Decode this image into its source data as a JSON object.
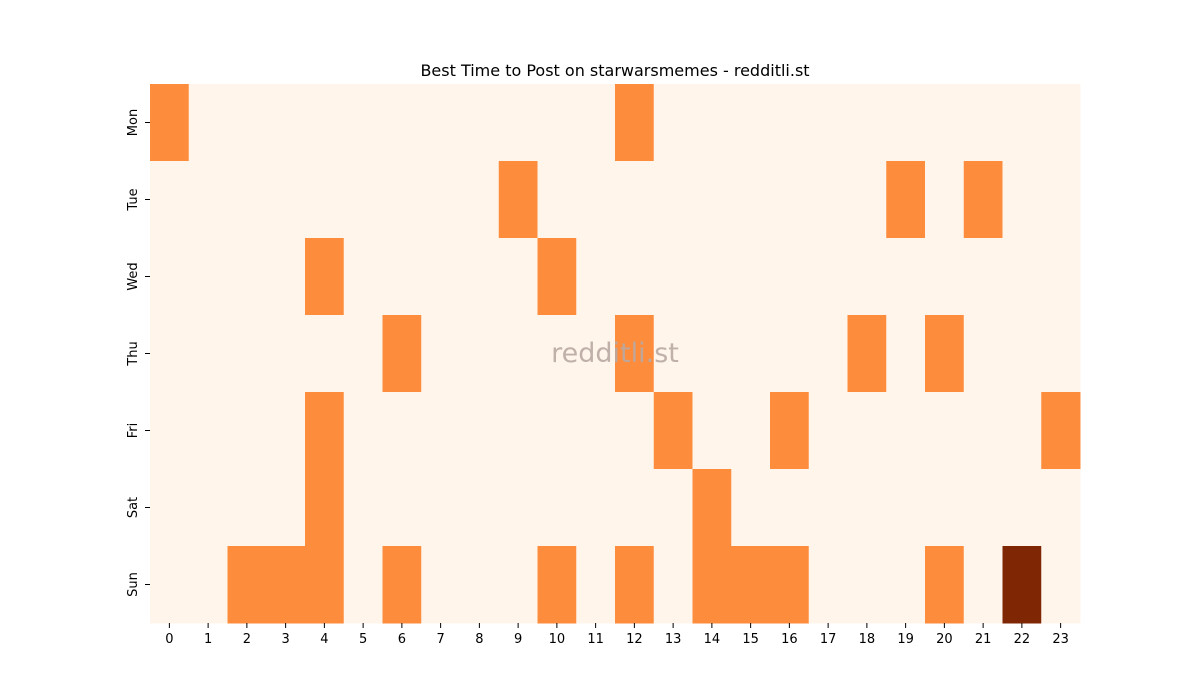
{
  "chart_data": {
    "type": "heatmap",
    "title": "Best Time to Post on starwarsmemes - redditli.st",
    "watermark": "redditli.st",
    "x_categories": [
      "0",
      "1",
      "2",
      "3",
      "4",
      "5",
      "6",
      "7",
      "8",
      "9",
      "10",
      "11",
      "12",
      "13",
      "14",
      "15",
      "16",
      "17",
      "18",
      "19",
      "20",
      "21",
      "22",
      "23"
    ],
    "y_categories": [
      "Mon",
      "Tue",
      "Wed",
      "Thu",
      "Fri",
      "Sat",
      "Sun"
    ],
    "values": [
      [
        1,
        0,
        0,
        0,
        0,
        0,
        0,
        0,
        0,
        0,
        0,
        0,
        1,
        0,
        0,
        0,
        0,
        0,
        0,
        0,
        0,
        0,
        0,
        0
      ],
      [
        0,
        0,
        0,
        0,
        0,
        0,
        0,
        0,
        0,
        1,
        0,
        0,
        0,
        0,
        0,
        0,
        0,
        0,
        0,
        1,
        0,
        1,
        0,
        0
      ],
      [
        0,
        0,
        0,
        0,
        1,
        0,
        0,
        0,
        0,
        0,
        1,
        0,
        0,
        0,
        0,
        0,
        0,
        0,
        0,
        0,
        0,
        0,
        0,
        0
      ],
      [
        0,
        0,
        0,
        0,
        0,
        0,
        1,
        0,
        0,
        0,
        0,
        0,
        1,
        0,
        0,
        0,
        0,
        0,
        1,
        0,
        1,
        0,
        0,
        0
      ],
      [
        0,
        0,
        0,
        0,
        1,
        0,
        0,
        0,
        0,
        0,
        0,
        0,
        0,
        1,
        0,
        0,
        1,
        0,
        0,
        0,
        0,
        0,
        0,
        1
      ],
      [
        0,
        0,
        0,
        0,
        1,
        0,
        0,
        0,
        0,
        0,
        0,
        0,
        0,
        0,
        1,
        0,
        0,
        0,
        0,
        0,
        0,
        0,
        0,
        0
      ],
      [
        0,
        0,
        1,
        1,
        1,
        0,
        1,
        0,
        0,
        0,
        1,
        0,
        1,
        0,
        1,
        1,
        1,
        0,
        0,
        0,
        1,
        0,
        2,
        0
      ]
    ],
    "colors": {
      "0": "#fff5eb",
      "1": "#fd8d3c",
      "2": "#7f2704"
    },
    "colorbar": false
  }
}
